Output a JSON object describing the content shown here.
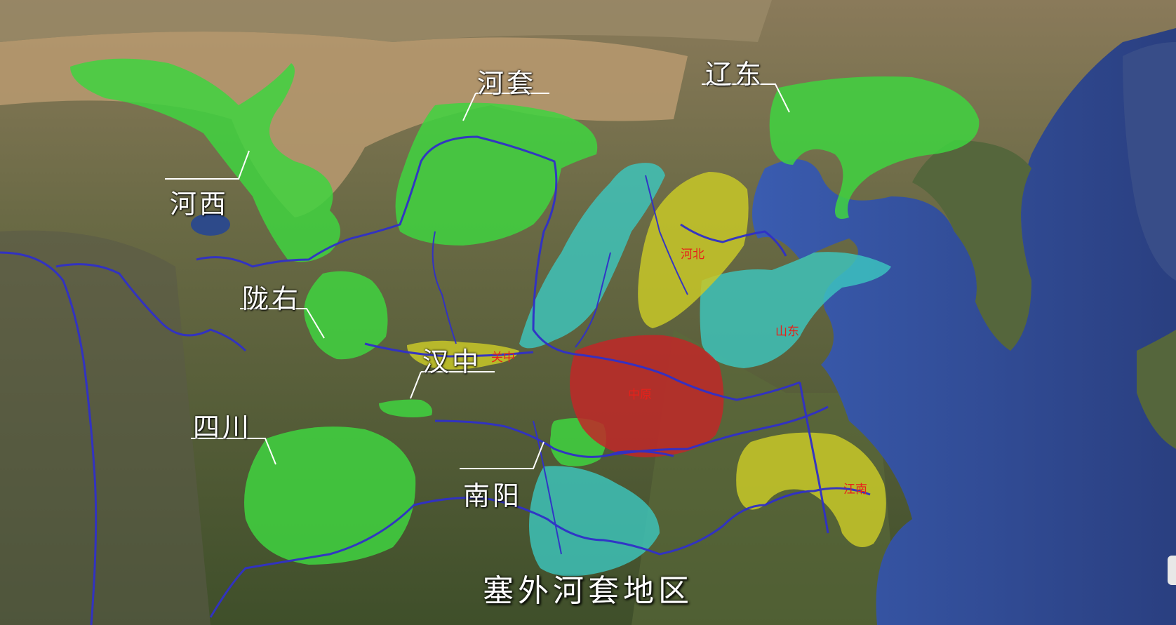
{
  "map": {
    "regions_major": {
      "hexi": "河西",
      "hetao": "河套",
      "liaodong": "辽东",
      "longyou": "陇右",
      "hanzhong": "汉中",
      "sichuan": "四川",
      "nanyang": "南阳"
    },
    "regions_minor": {
      "hebei": "河北",
      "shandong": "山东",
      "guanzhong": "关中",
      "zhongyuan": "中原",
      "jiangnan": "江南"
    },
    "caption": "塞外河套地区",
    "colors": {
      "green": "#3fd43f",
      "cyan": "#3cc8c0",
      "yellow": "#c8c828",
      "red": "#c02828",
      "sea": "#2f4f9a",
      "river": "#3030c8",
      "land": "#5a5e3a",
      "desert": "#b89a70",
      "minor_label": "#e8201a"
    }
  }
}
